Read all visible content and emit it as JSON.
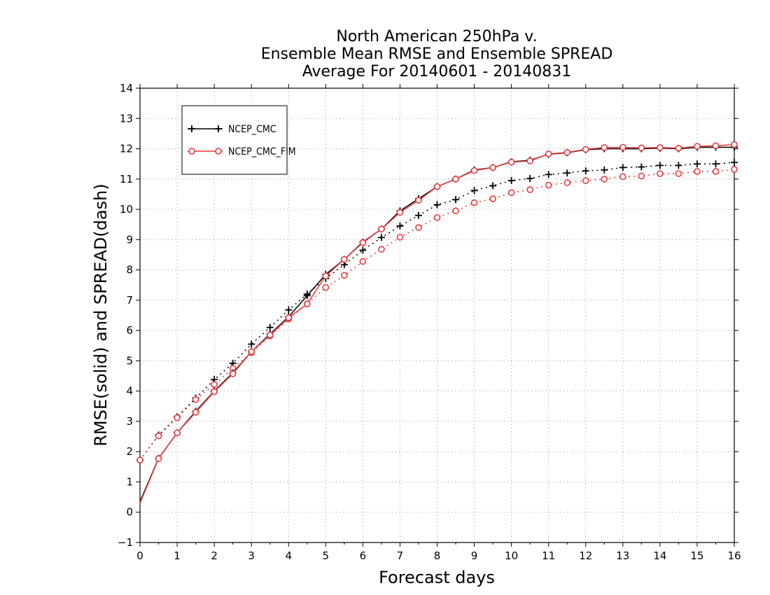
{
  "chart_data": {
    "type": "line",
    "title_lines": [
      "North American 250hPa v.",
      "Ensemble Mean RMSE and Ensemble SPREAD",
      "Average For 20140601 - 20140831"
    ],
    "xlabel": "Forecast days",
    "ylabel": "RMSE(solid) and SPREAD(dash)",
    "xlim": [
      0,
      16
    ],
    "ylim": [
      -1,
      14
    ],
    "x_ticks": [
      0,
      1,
      2,
      3,
      4,
      5,
      6,
      7,
      8,
      9,
      10,
      11,
      12,
      13,
      14,
      15,
      16
    ],
    "y_ticks": [
      -1,
      0,
      1,
      2,
      3,
      4,
      5,
      6,
      7,
      8,
      9,
      10,
      11,
      12,
      13,
      14
    ],
    "grid": true,
    "legend_position": "top-left",
    "legend": [
      {
        "label": "NCEP_CMC",
        "color": "#000000",
        "marker": "plus"
      },
      {
        "label": "NCEP_CMC_FIM",
        "color": "#e8393d",
        "marker": "circle"
      }
    ],
    "x": [
      0,
      0.5,
      1,
      1.5,
      2,
      2.5,
      3,
      3.5,
      4,
      4.5,
      5,
      5.5,
      6,
      6.5,
      7,
      7.5,
      8,
      8.5,
      9,
      9.5,
      10,
      10.5,
      11,
      11.5,
      12,
      12.5,
      13,
      13.5,
      14,
      14.5,
      15,
      15.5,
      16
    ],
    "series": [
      {
        "name": "NCEP_CMC",
        "kind": "RMSE",
        "style": "solid",
        "color": "#000000",
        "marker": "plus",
        "values": [
          0.35,
          1.78,
          2.62,
          3.33,
          4.0,
          4.6,
          5.3,
          5.88,
          6.45,
          7.15,
          7.85,
          8.35,
          8.92,
          9.35,
          9.95,
          10.35,
          10.75,
          11.0,
          11.3,
          11.38,
          11.57,
          11.62,
          11.82,
          11.87,
          11.97,
          12.0,
          12.0,
          12.0,
          12.02,
          12.0,
          12.05,
          12.05,
          12.05
        ]
      },
      {
        "name": "NCEP_CMC_FIM",
        "kind": "RMSE",
        "style": "solid",
        "color": "#e8393d",
        "marker": "circle",
        "values": [
          0.3,
          1.77,
          2.62,
          3.3,
          3.98,
          4.57,
          5.3,
          5.85,
          6.42,
          6.88,
          7.8,
          8.35,
          8.9,
          9.35,
          9.9,
          10.3,
          10.75,
          11.0,
          11.28,
          11.38,
          11.56,
          11.6,
          11.83,
          11.88,
          11.98,
          12.04,
          12.05,
          12.03,
          12.04,
          12.02,
          12.08,
          12.1,
          12.14
        ]
      },
      {
        "name": "NCEP_CMC",
        "kind": "SPREAD",
        "style": "dash",
        "color": "#000000",
        "marker": "plus",
        "values": [
          1.72,
          2.55,
          3.15,
          3.77,
          4.38,
          4.92,
          5.55,
          6.1,
          6.68,
          7.2,
          7.72,
          8.17,
          8.65,
          9.07,
          9.45,
          9.8,
          10.15,
          10.32,
          10.62,
          10.78,
          10.95,
          11.02,
          11.15,
          11.2,
          11.27,
          11.3,
          11.38,
          11.4,
          11.45,
          11.45,
          11.5,
          11.5,
          11.55
        ]
      },
      {
        "name": "NCEP_CMC_FIM",
        "kind": "SPREAD",
        "style": "dash",
        "color": "#e8393d",
        "marker": "circle",
        "values": [
          1.72,
          2.52,
          3.12,
          3.72,
          4.22,
          4.75,
          5.27,
          5.82,
          6.38,
          6.88,
          7.42,
          7.82,
          8.28,
          8.68,
          9.08,
          9.4,
          9.73,
          9.95,
          10.22,
          10.35,
          10.55,
          10.65,
          10.8,
          10.88,
          10.95,
          11.0,
          11.08,
          11.1,
          11.18,
          11.18,
          11.25,
          11.25,
          11.32
        ]
      }
    ]
  }
}
